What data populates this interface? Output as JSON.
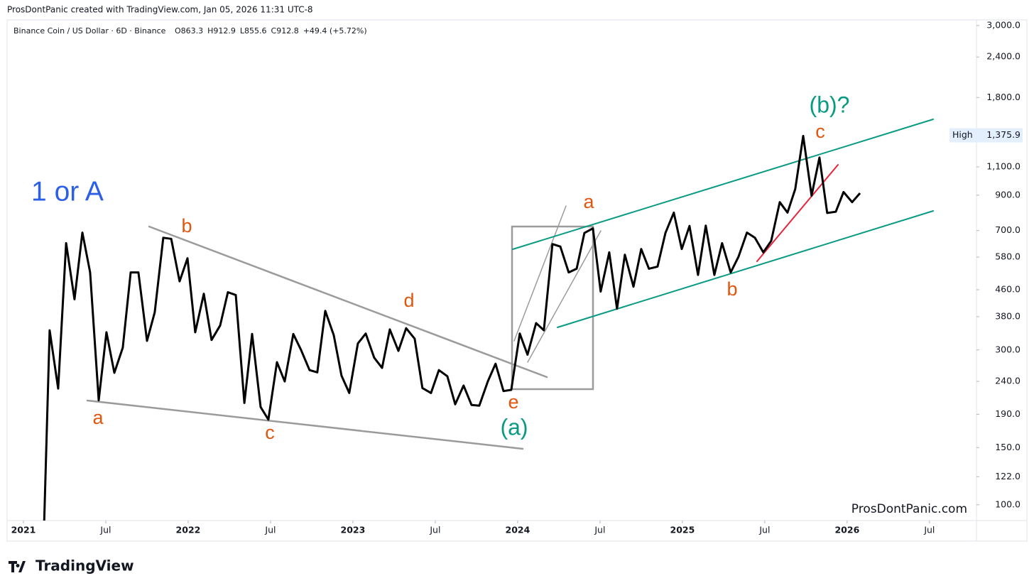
{
  "header": {
    "credit": "ProsDontPanic created with TradingView.com, Jan 05, 2026 11:31 UTC-8",
    "symbol": "Binance Coin / US Dollar · 6D · Binance",
    "ohlc": [
      "O863.3",
      "H912.9",
      "L855.6",
      "C912.8",
      "+49.4 (+5.72%)"
    ]
  },
  "chart_data": {
    "type": "line",
    "log_scale": true,
    "grid": false,
    "color": "#000000",
    "xlim": [
      2020.901,
      2026.785
    ],
    "ylim": [
      89.4,
      3122
    ],
    "xticks": [
      2021,
      {
        "value": 2021.5,
        "label": "Jul"
      },
      2022,
      {
        "value": 2022.5,
        "label": "Jul"
      },
      2023,
      {
        "value": 2023.5,
        "label": "Jul"
      },
      2024,
      {
        "value": 2024.5,
        "label": "Jul"
      },
      2025,
      {
        "value": 2025.5,
        "label": "Jul"
      },
      2026,
      {
        "value": 2026.5,
        "label": "Jul"
      }
    ],
    "yticks": [
      {
        "value": 3000,
        "label": "3,000.0"
      },
      {
        "value": 2400,
        "label": "2,400.0"
      },
      {
        "value": 1800,
        "label": "1,800.0"
      },
      {
        "value": 1100,
        "label": "1,100.0"
      },
      {
        "value": 900,
        "label": "900.0"
      },
      {
        "value": 700,
        "label": "700.0"
      },
      {
        "value": 580,
        "label": "580.0"
      },
      {
        "value": 460,
        "label": "460.0"
      },
      {
        "value": 380,
        "label": "380.0"
      },
      {
        "value": 300,
        "label": "300.0"
      },
      {
        "value": 240,
        "label": "240.0"
      },
      {
        "value": 190,
        "label": "190.0"
      },
      {
        "value": 150,
        "label": "150.0"
      },
      {
        "value": 122,
        "label": "122.0"
      },
      {
        "value": 100,
        "label": "100.0"
      }
    ],
    "x": [
      2021.125,
      2021.159,
      2021.211,
      2021.259,
      2021.31,
      2021.358,
      2021.405,
      2021.457,
      2021.504,
      2021.552,
      2021.603,
      2021.651,
      2021.698,
      2021.75,
      2021.797,
      2021.849,
      2021.897,
      2021.948,
      2021.996,
      2022.043,
      2022.095,
      2022.142,
      2022.194,
      2022.241,
      2022.289,
      2022.341,
      2022.388,
      2022.44,
      2022.487,
      2022.539,
      2022.586,
      2022.638,
      2022.685,
      2022.737,
      2022.784,
      2022.832,
      2022.884,
      2022.931,
      2022.978,
      2023.03,
      2023.078,
      2023.129,
      2023.177,
      2023.224,
      2023.276,
      2023.323,
      2023.375,
      2023.422,
      2023.474,
      2023.522,
      2023.573,
      2023.621,
      2023.672,
      2023.72,
      2023.767,
      2023.819,
      2023.866,
      2023.914,
      2023.961,
      2024.013,
      2024.06,
      2024.112,
      2024.159,
      2024.211,
      2024.259,
      2024.31,
      2024.358,
      2024.405,
      2024.457,
      2024.504,
      2024.556,
      2024.603,
      2024.651,
      2024.703,
      2024.75,
      2024.797,
      2024.849,
      2024.897,
      2024.948,
      2024.996,
      2025.043,
      2025.095,
      2025.142,
      2025.194,
      2025.241,
      2025.293,
      2025.341,
      2025.392,
      2025.44,
      2025.491,
      2025.539,
      2025.591,
      2025.638,
      2025.685,
      2025.733,
      2025.784,
      2025.832,
      2025.879,
      2025.931,
      2025.978,
      2026.03,
      2026.078
    ],
    "values": [
      85,
      345,
      228,
      640,
      430,
      690,
      520,
      210,
      340,
      255,
      305,
      520,
      520,
      320,
      392,
      665,
      660,
      488,
      575,
      340,
      447,
      322,
      357,
      452,
      443,
      206,
      336,
      200,
      183,
      275,
      240,
      336,
      300,
      260,
      256,
      396,
      333,
      250,
      221,
      314,
      337,
      284,
      264,
      347,
      298,
      350,
      325,
      229,
      221,
      260,
      249,
      204,
      233,
      203,
      202,
      240,
      272,
      224,
      226,
      337,
      290,
      363,
      345,
      636,
      625,
      520,
      534,
      688,
      711,
      454,
      600,
      402,
      590,
      470,
      614,
      534,
      542,
      688,
      795,
      614,
      723,
      511,
      725,
      511,
      640,
      520,
      582,
      690,
      665,
      600,
      650,
      856,
      795,
      940,
      1370,
      897,
      1175,
      793,
      800,
      920,
      856,
      912.8
    ],
    "high": {
      "label": "High",
      "value": 1375.9,
      "value_label": "1,375.9"
    },
    "annotations": [
      "1 or A",
      "b",
      "d",
      "a",
      "c",
      "e",
      "(a)",
      "a",
      "b",
      "c",
      "(b)?"
    ],
    "watermark": "ProsDontPanic.com"
  },
  "footer": {
    "brand": "TradingView"
  }
}
